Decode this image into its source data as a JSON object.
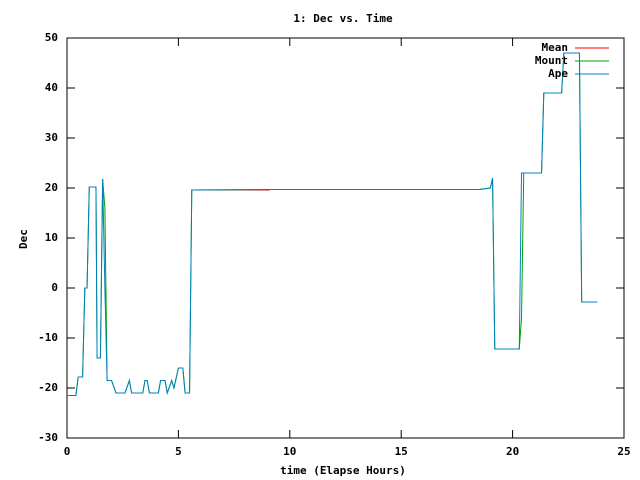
{
  "chart_data": {
    "type": "line",
    "title": "1: Dec vs. Time",
    "x_label": "time (Elapse Hours)",
    "y_label": "Dec",
    "xlim": [
      0,
      25
    ],
    "xticks": [
      0,
      5,
      10,
      15,
      20,
      25
    ],
    "ylim": [
      -30,
      50
    ],
    "yticks": [
      -30,
      -20,
      -10,
      0,
      10,
      20,
      30,
      40,
      50
    ],
    "legend": "top-right",
    "series": [
      {
        "name": "Mean",
        "color": "#ff0000",
        "x": [
          5.6,
          9.1
        ],
        "values": [
          19.6,
          19.6
        ]
      },
      {
        "name": "Mount",
        "color": "#00a000",
        "x": [
          0,
          0.4,
          0.5,
          0.7,
          0.8,
          0.9,
          1.0,
          1.3,
          1.35,
          1.5,
          1.6,
          1.7,
          1.8,
          2.0,
          2.2,
          2.6,
          2.8,
          2.9,
          3.4,
          3.5,
          3.6,
          3.7,
          4.1,
          4.2,
          4.4,
          4.5,
          4.7,
          4.8,
          5.0,
          5.2,
          5.3,
          5.5,
          5.6,
          9.1,
          18.5,
          19.0,
          19.1,
          19.2,
          20.3,
          20.4,
          20.5,
          21.3,
          21.4,
          22.2,
          22.3,
          23.0,
          23.1,
          23.8
        ],
        "values": [
          -21.5,
          -21.5,
          -17.8,
          -17.8,
          0,
          0,
          20.2,
          20.2,
          -14,
          -14,
          21.8,
          16,
          -18.5,
          -18.5,
          -21,
          -21,
          -18.5,
          -21,
          -21,
          -18.5,
          -18.5,
          -21,
          -21,
          -18.5,
          -18.5,
          -21,
          -18.5,
          -20,
          -16,
          -16,
          -21,
          -21,
          19.6,
          19.7,
          19.7,
          20,
          22,
          -12.2,
          -12.2,
          -6,
          23,
          23,
          39,
          39,
          47,
          47,
          -2.8,
          -2.8
        ]
      },
      {
        "name": "Ape",
        "color": "#0080c0",
        "x": [
          0,
          0.4,
          0.5,
          0.7,
          0.8,
          0.9,
          1.0,
          1.3,
          1.35,
          1.5,
          1.6,
          1.7,
          1.8,
          2.0,
          2.2,
          2.6,
          2.8,
          2.9,
          3.4,
          3.5,
          3.6,
          3.7,
          4.1,
          4.2,
          4.4,
          4.5,
          4.7,
          4.8,
          5.0,
          5.2,
          5.3,
          5.5,
          5.6,
          9.1,
          18.5,
          19.0,
          19.1,
          19.2,
          20.3,
          20.4,
          21.3,
          21.4,
          22.2,
          22.3,
          23.0,
          23.1,
          23.8
        ],
        "values": [
          -21.5,
          -21.5,
          -17.8,
          -17.8,
          0,
          0,
          20.2,
          20.2,
          -14,
          -14,
          21.8,
          0,
          -18.5,
          -18.5,
          -21,
          -21,
          -18.5,
          -21,
          -21,
          -18.5,
          -18.5,
          -21,
          -21,
          -18.5,
          -18.5,
          -21,
          -18.5,
          -20,
          -16,
          -16,
          -21,
          -21,
          19.6,
          19.7,
          19.7,
          20,
          22,
          -12.2,
          -12.2,
          23,
          23,
          39,
          39,
          47,
          47,
          -2.8,
          -2.8
        ]
      }
    ]
  }
}
